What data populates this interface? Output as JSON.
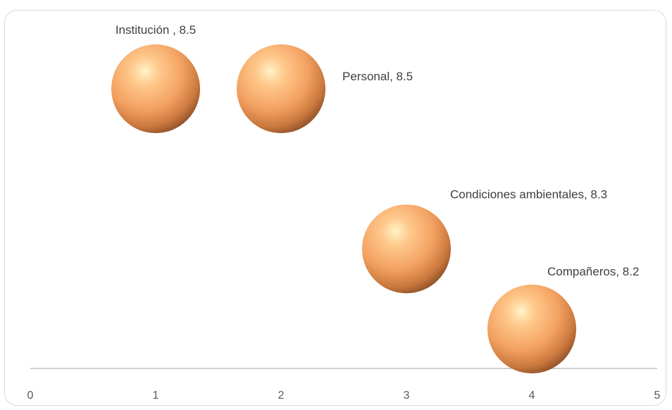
{
  "chart_data": {
    "type": "bubble",
    "title": "",
    "xlabel": "",
    "ylabel": "",
    "xlim": [
      0,
      5
    ],
    "ylim": [
      8.1,
      8.55
    ],
    "x_ticks": [
      "0",
      "1",
      "2",
      "3",
      "4",
      "5"
    ],
    "y_axis_visible": false,
    "grid": false,
    "legend": "none",
    "bubble_color": "#f4a460",
    "points": [
      {
        "label": "Institución , 8.5",
        "x": 1,
        "y": 8.5
      },
      {
        "label": "Personal, 8.5",
        "x": 2,
        "y": 8.5
      },
      {
        "label": "Condiciones ambientales, 8.3",
        "x": 3,
        "y": 8.3
      },
      {
        "label": "Compañeros, 8.2",
        "x": 4,
        "y": 8.2
      }
    ]
  }
}
